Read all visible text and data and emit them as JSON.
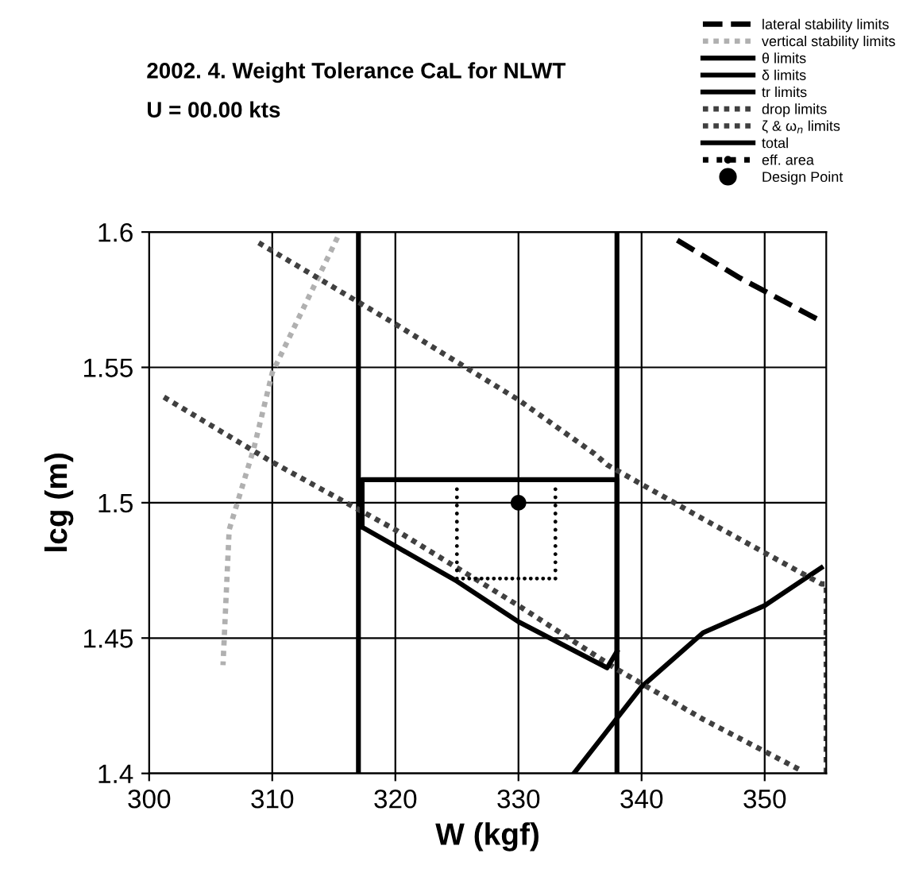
{
  "chart_data": {
    "type": "line",
    "title": "2002. 4. Weight Tolerance CaL for NLWT",
    "subtitle": "U = 00.00 kts",
    "xlabel": "W (kgf)",
    "ylabel": "lcg (m)",
    "xlim": [
      300,
      355
    ],
    "ylim": [
      1.4,
      1.6
    ],
    "xticks": [
      300,
      310,
      320,
      330,
      340,
      350
    ],
    "yticks": [
      1.4,
      1.45,
      1.5,
      1.55,
      1.6
    ],
    "grid": true,
    "legend": "top right",
    "series": [
      {
        "name": "lateral stability limits",
        "color": "#000000",
        "line_style": "dashed",
        "x": [
          342.9,
          348,
          354.6
        ],
        "values": [
          1.597,
          1.583,
          1.567
        ]
      },
      {
        "name": "vertical stability limits",
        "color": "#b0b0b0",
        "line_style": "dotted",
        "x": [
          315.3,
          310,
          308.5,
          306.5,
          306
        ],
        "values": [
          1.598,
          1.548,
          1.52,
          1.49,
          1.44
        ]
      },
      {
        "name": "θ limits",
        "color": "#000000",
        "line_style": "solid",
        "x": [
          334.5,
          340,
          345,
          350,
          354.6
        ],
        "values": [
          1.4,
          1.432,
          1.452,
          1.462,
          1.476
        ]
      },
      {
        "name": "δ limits",
        "color": "#000000",
        "line_style": "solid",
        "x": [
          317,
          317
        ],
        "values": [
          1.4,
          1.6
        ]
      },
      {
        "name": "tr limits",
        "color": "#000000",
        "line_style": "solid",
        "x": [
          338,
          338
        ],
        "values": [
          1.4,
          1.6
        ]
      },
      {
        "name": "drop limits",
        "color": "#404040",
        "line_style": "dotted",
        "x": [
          308.9,
          320,
          330,
          336.2,
          337.2,
          345,
          354.6,
          355,
          355
        ],
        "values": [
          1.596,
          1.566,
          1.538,
          1.518,
          1.514,
          1.494,
          1.47,
          1.47,
          1.4
        ]
      },
      {
        "name": "ζ & ω$_{n}$ limits",
        "color": "#404040",
        "line_style": "dotted",
        "x": [
          301.2,
          310,
          320,
          330,
          337.8,
          345,
          353
        ],
        "values": [
          1.539,
          1.515,
          1.49,
          1.462,
          1.439,
          1.42,
          1.401
        ]
      },
      {
        "name": "total",
        "color": "#000000",
        "line_style": "solid",
        "x": [
          317.3,
          317.3,
          338,
          338
        ],
        "values": [
          1.491,
          1.5085,
          1.5085,
          1.445
        ]
      },
      {
        "color": "#000000",
        "line_style": "solid",
        "x": [
          317.3,
          320,
          325,
          330,
          337.2,
          338
        ],
        "values": [
          1.491,
          1.484,
          1.471,
          1.456,
          1.439,
          1.445
        ]
      },
      {
        "name": "eff. area",
        "type": "scatter",
        "color": "#000000",
        "marker": "circle",
        "x": [
          325,
          325,
          325,
          325,
          325,
          325,
          325,
          325,
          325,
          325,
          325,
          325,
          325.5,
          326,
          326.5,
          327,
          327.5,
          328,
          328.5,
          329,
          329.5,
          330,
          330.5,
          331,
          331.5,
          332,
          332.5,
          333,
          333,
          333,
          333,
          333,
          333,
          333,
          333,
          333,
          333,
          333,
          333
        ],
        "values": [
          1.505,
          1.502,
          1.499,
          1.496,
          1.493,
          1.49,
          1.487,
          1.484,
          1.481,
          1.478,
          1.475,
          1.472,
          1.472,
          1.472,
          1.472,
          1.472,
          1.472,
          1.472,
          1.472,
          1.472,
          1.472,
          1.472,
          1.472,
          1.472,
          1.472,
          1.472,
          1.472,
          1.472,
          1.475,
          1.478,
          1.481,
          1.484,
          1.487,
          1.49,
          1.493,
          1.496,
          1.499,
          1.502,
          1.505
        ]
      },
      {
        "name": "Design Point",
        "type": "scatter",
        "color": "#000000",
        "marker": "circle",
        "x": [
          330
        ],
        "values": [
          1.5
        ]
      }
    ]
  }
}
